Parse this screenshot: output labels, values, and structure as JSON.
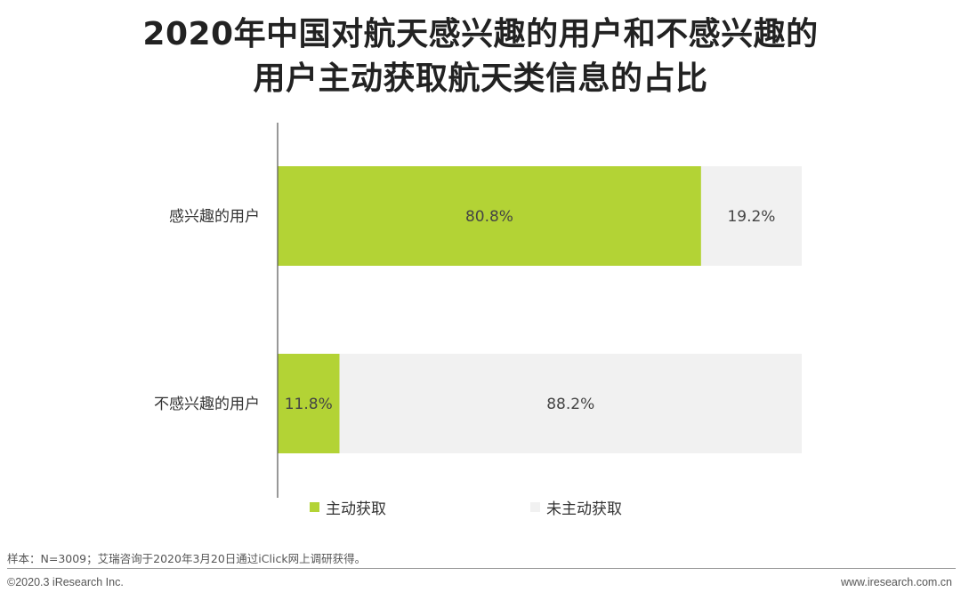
{
  "header": {
    "title_line1": "2020年中国对航天感兴趣的用户和不感兴趣的",
    "title_line2": "用户主动获取航天类信息的占比"
  },
  "chart_data": {
    "type": "bar",
    "orientation": "horizontal",
    "stacked": true,
    "percent_stacked": true,
    "categories": [
      "感兴趣的用户",
      "不感兴趣的用户"
    ],
    "series": [
      {
        "name": "主动获取",
        "values": [
          80.8,
          11.8
        ],
        "labels": [
          "80.8%",
          "11.8%"
        ],
        "color": "#b3d335"
      },
      {
        "name": "未主动获取",
        "values": [
          19.2,
          88.2
        ],
        "labels": [
          "19.2%",
          "88.2%"
        ],
        "color": "#f1f1f1"
      }
    ],
    "xlim": [
      0,
      100
    ],
    "unit": "%",
    "grid": false,
    "legend_position": "bottom"
  },
  "footer": {
    "note": "样本：N=3009；艾瑞咨询于2020年3月20日通过iClick网上调研获得。",
    "copyright": "©2020.3 iResearch Inc.",
    "website": "www.iresearch.com.cn"
  }
}
